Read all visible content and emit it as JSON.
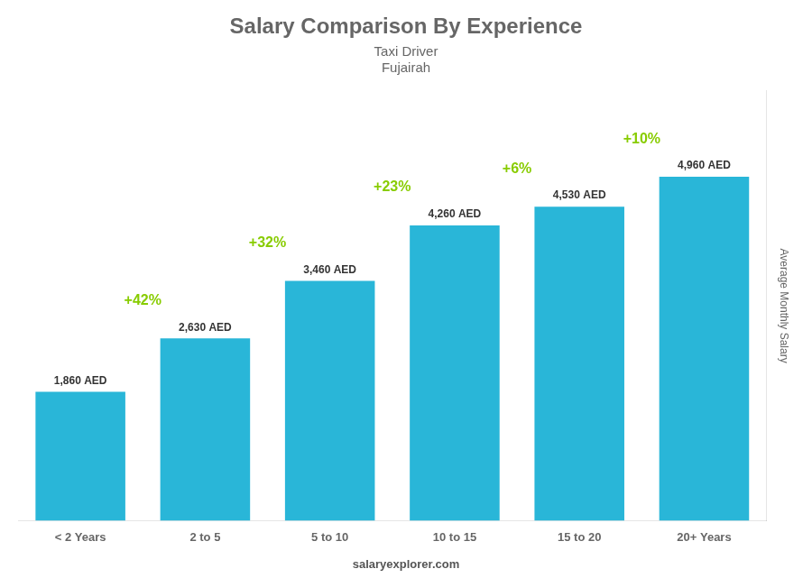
{
  "chart_data": {
    "type": "bar",
    "title": "Salary Comparison By Experience",
    "subtitle": [
      "Taxi Driver",
      "Fujairah"
    ],
    "categories": [
      "< 2 Years",
      "2 to 5",
      "5 to 10",
      "10 to 15",
      "15 to 20",
      "20+ Years"
    ],
    "values": [
      1860,
      2630,
      3460,
      4260,
      4530,
      4960
    ],
    "value_labels": [
      "1,860 AED",
      "2,630 AED",
      "3,460 AED",
      "4,260 AED",
      "4,530 AED",
      "4,960 AED"
    ],
    "data_labels": true,
    "color": "#29b6d8",
    "ylim": [
      0,
      6200
    ],
    "ylabel": "Average Monthly Salary",
    "annotations": [
      {
        "text": "+42%",
        "color": "#88cc00"
      },
      {
        "text": "+32%",
        "color": "#88cc00"
      },
      {
        "text": "+23%",
        "color": "#88cc00"
      },
      {
        "text": "+6%",
        "color": "#88cc00"
      },
      {
        "text": "+10%",
        "color": "#88cc00"
      }
    ],
    "footer": "salaryexplorer.com",
    "grid": false,
    "tick_labels": "x"
  }
}
